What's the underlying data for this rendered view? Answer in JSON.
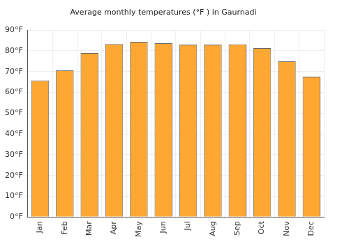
{
  "chart_data": {
    "type": "bar",
    "title": "Average monthly temperatures (°F ) in Gaurnadi",
    "categories": [
      "Jan",
      "Feb",
      "Mar",
      "Apr",
      "May",
      "Jun",
      "Jul",
      "Aug",
      "Sep",
      "Oct",
      "Nov",
      "Dec"
    ],
    "values": [
      65.7,
      70.6,
      79.0,
      83.3,
      84.4,
      83.7,
      83.0,
      83.0,
      83.2,
      81.3,
      75.0,
      67.6
    ],
    "color": "#ffa733",
    "ylim": [
      0,
      90
    ],
    "yticks": [
      {
        "value": 0,
        "label": "0°F"
      },
      {
        "value": 10,
        "label": "10°F"
      },
      {
        "value": 20,
        "label": "20°F"
      },
      {
        "value": 30,
        "label": "30°F"
      },
      {
        "value": 40,
        "label": "40°F"
      },
      {
        "value": 50,
        "label": "50°F"
      },
      {
        "value": 60,
        "label": "60°F"
      },
      {
        "value": 70,
        "label": "70°F"
      },
      {
        "value": 80,
        "label": "80°F"
      },
      {
        "value": 90,
        "label": "90°F"
      }
    ],
    "grid": true
  }
}
